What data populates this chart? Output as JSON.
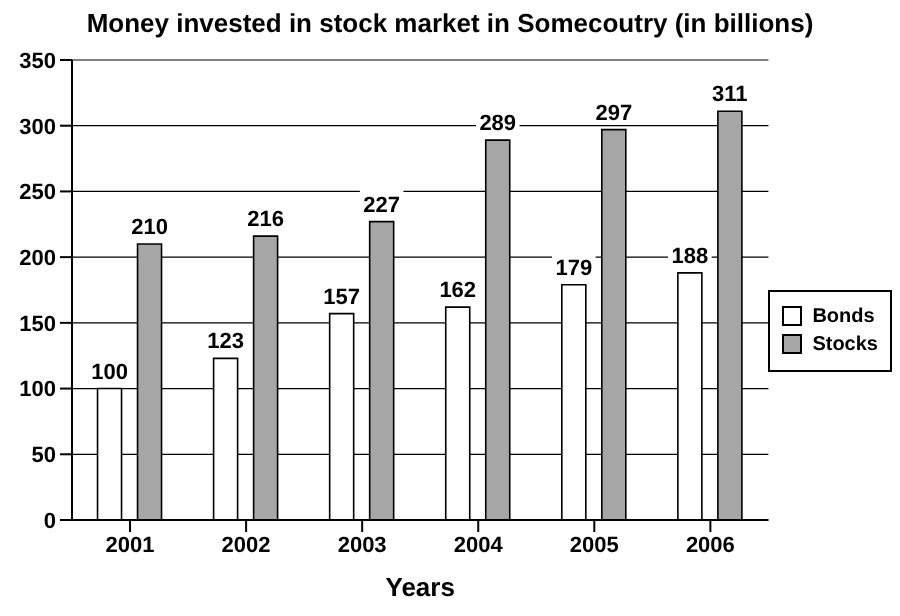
{
  "chart_data": {
    "type": "bar",
    "title": "Money invested in stock market in Somecoutry (in billions)",
    "xlabel": "Years",
    "categories": [
      "2001",
      "2002",
      "2003",
      "2004",
      "2005",
      "2006"
    ],
    "series": [
      {
        "name": "Bonds",
        "color": "#ffffff",
        "values": [
          100,
          123,
          157,
          162,
          179,
          188
        ]
      },
      {
        "name": "Stocks",
        "color": "#a6a6a6",
        "values": [
          210,
          216,
          227,
          289,
          297,
          311
        ]
      }
    ],
    "ylim": [
      0,
      350
    ],
    "yticks": [
      0,
      50,
      100,
      150,
      200,
      250,
      300,
      350
    ],
    "grid": "y",
    "legend": "right",
    "data_labels": true
  }
}
